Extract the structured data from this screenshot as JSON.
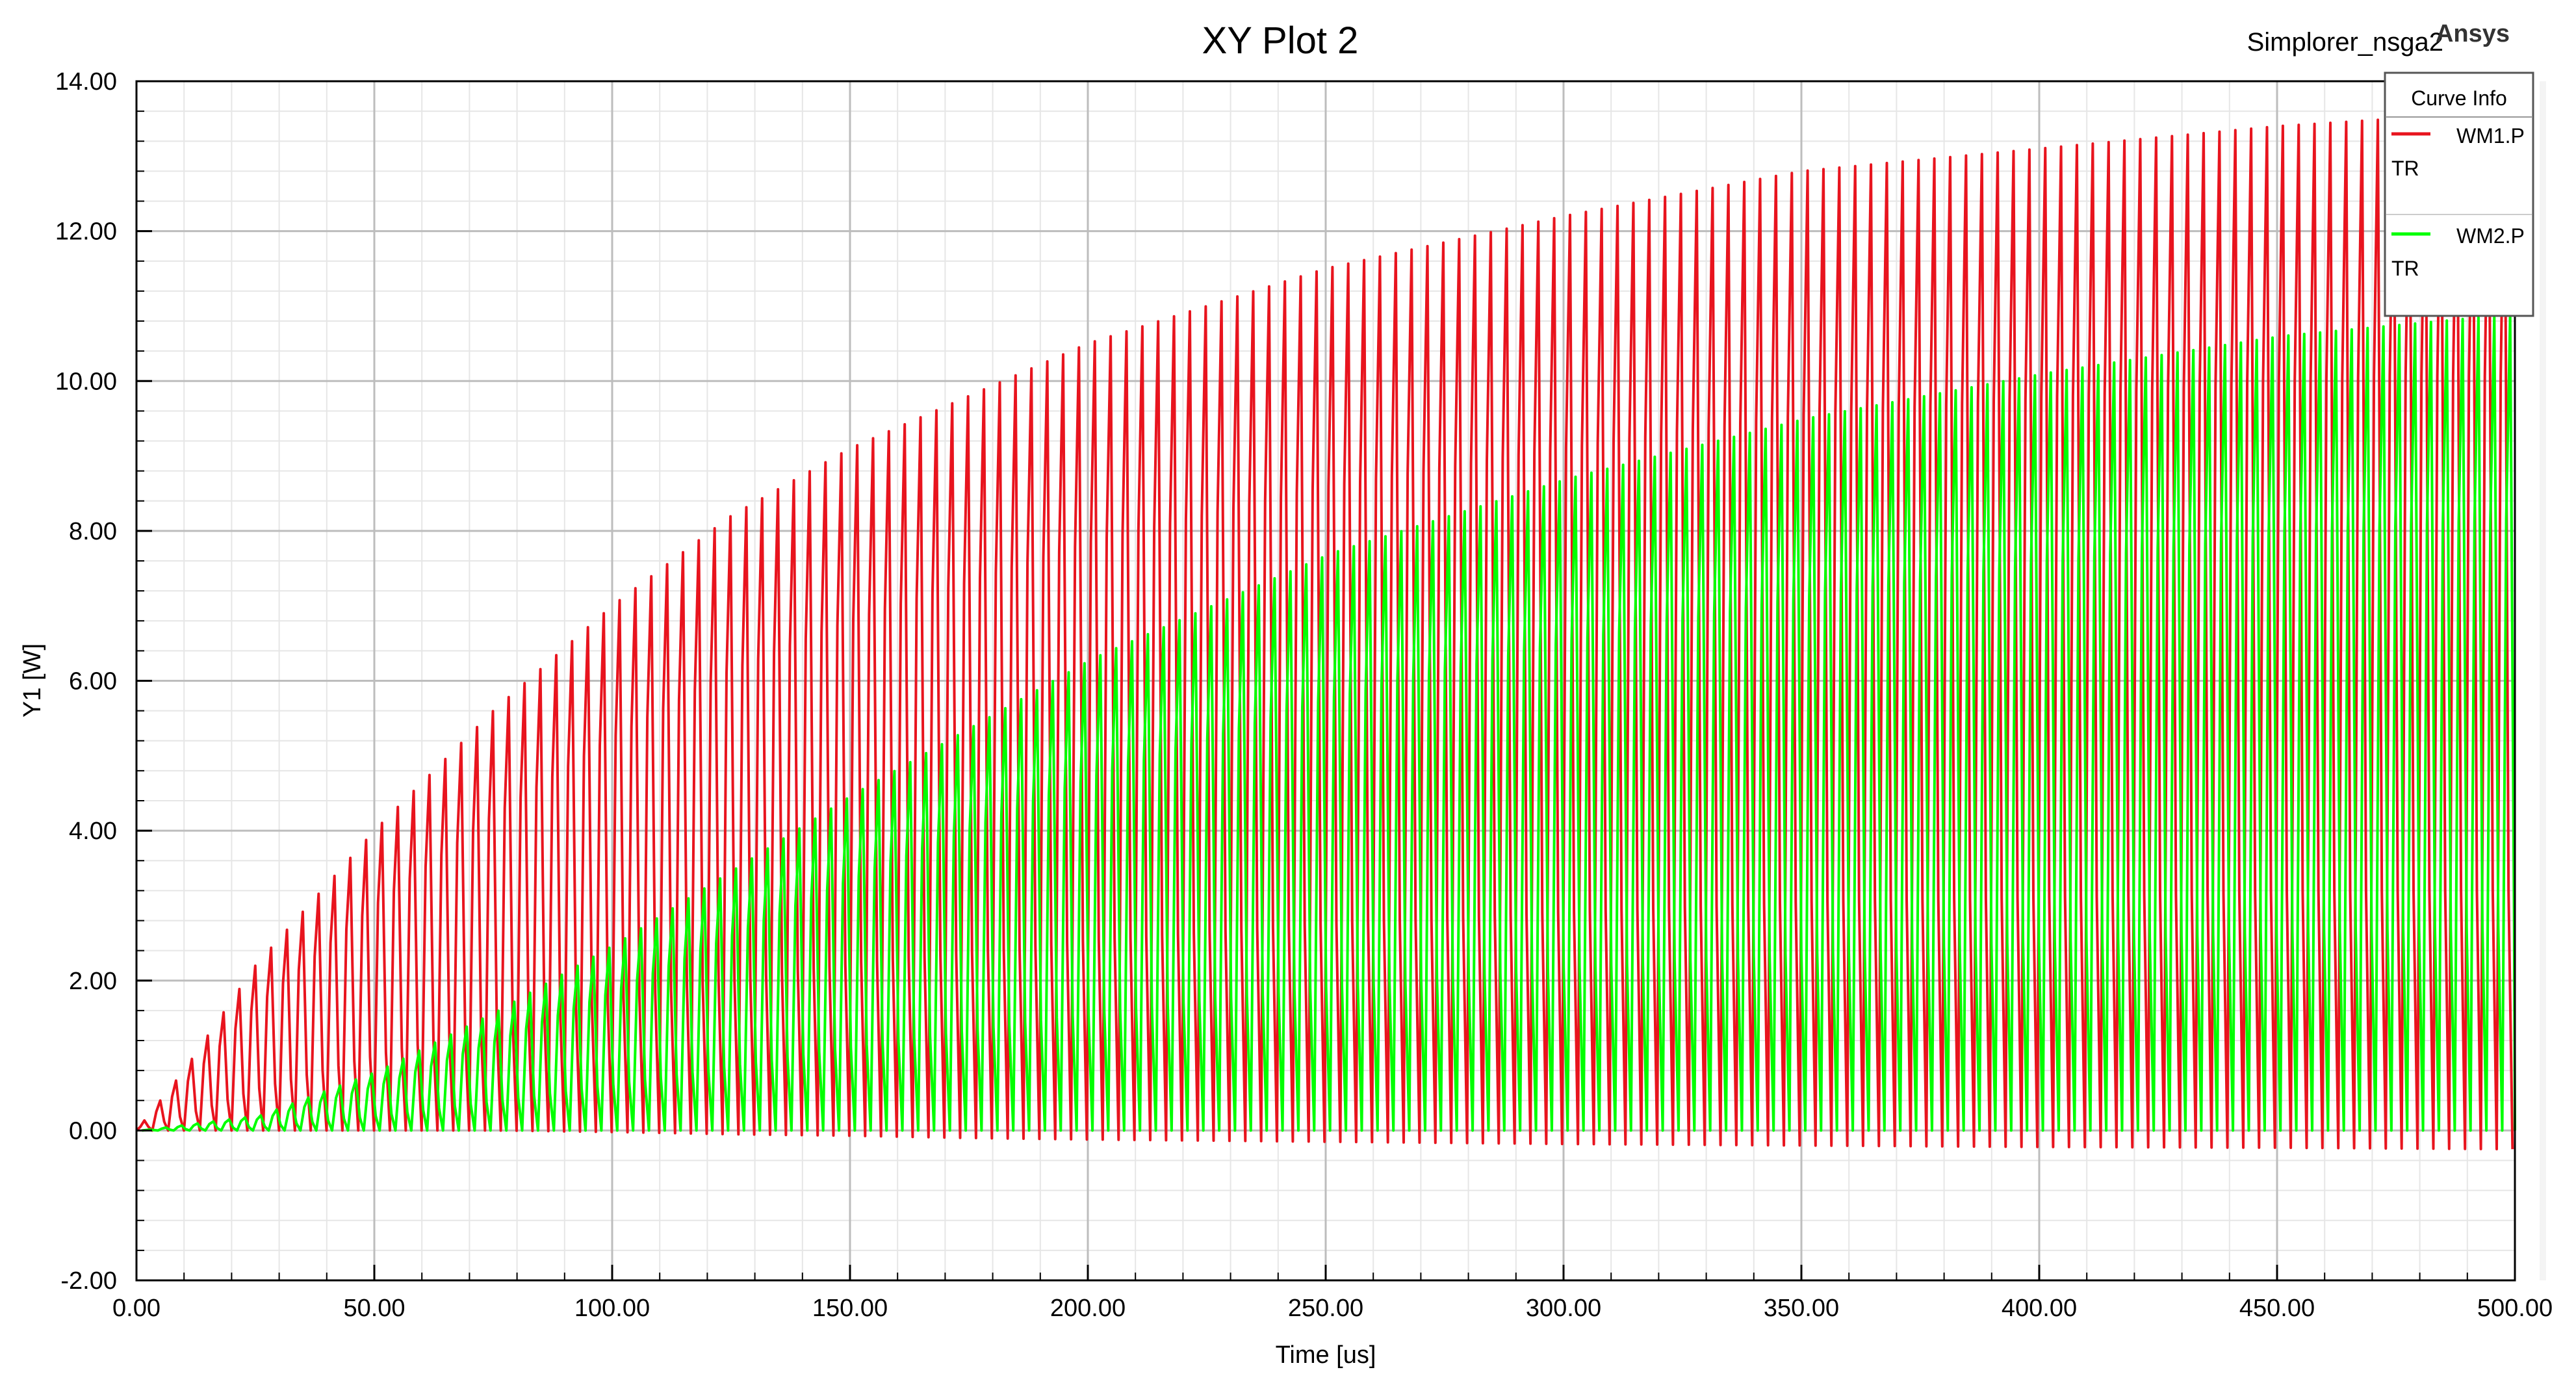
{
  "header": {
    "title": "XY Plot 2",
    "project": "Simplorer_nsga2",
    "brand": "Ansys"
  },
  "legend": {
    "title": "Curve Info",
    "placement": "top-right",
    "entries": [
      {
        "line1": "WM1.P",
        "line2": "TR",
        "color": "#e8141e"
      },
      {
        "line1": "WM2.P",
        "line2": "TR",
        "color": "#00ff00"
      }
    ]
  },
  "chart_data": {
    "type": "line",
    "title": "XY Plot 2",
    "xlabel": "Time [us]",
    "ylabel": "Y1 [W]",
    "xlim": [
      0,
      500
    ],
    "ylim": [
      -2,
      14
    ],
    "x_ticks": [
      "0.00",
      "50.00",
      "100.00",
      "150.00",
      "200.00",
      "250.00",
      "300.00",
      "350.00",
      "400.00",
      "450.00",
      "500.00"
    ],
    "y_ticks": [
      "-2.00",
      "0.00",
      "2.00",
      "4.00",
      "6.00",
      "8.00",
      "10.00",
      "12.00",
      "14.00"
    ],
    "grid": true,
    "series": [
      {
        "name": "WM1.P TR",
        "color": "#e8141e",
        "description_of_signal": "oscillating, envelope rising",
        "oscillation_period": 3.33,
        "envelope": {
          "x": [
            0,
            10,
            25,
            50,
            75,
            100,
            125,
            150,
            175,
            200,
            250,
            300,
            350,
            400,
            450,
            475,
            500
          ],
          "upper": [
            0.0,
            0.8,
            2.2,
            4.0,
            5.6,
            7.0,
            8.2,
            9.1,
            9.8,
            10.5,
            11.5,
            12.2,
            12.8,
            13.1,
            13.4,
            13.5,
            13.5
          ],
          "lower": [
            0.0,
            0.0,
            0.0,
            0.0,
            0.0,
            -0.02,
            -0.05,
            -0.07,
            -0.1,
            -0.12,
            -0.15,
            -0.18,
            -0.2,
            -0.22,
            -0.23,
            -0.24,
            -0.25
          ]
        }
      },
      {
        "name": "WM2.P TR",
        "color": "#00ff00",
        "description_of_signal": "oscillating, envelope rising",
        "oscillation_period": 3.33,
        "envelope": {
          "x": [
            0,
            25,
            50,
            75,
            100,
            125,
            150,
            175,
            200,
            250,
            300,
            350,
            400,
            450,
            500
          ],
          "upper": [
            0.0,
            0.2,
            0.8,
            1.6,
            2.5,
            3.5,
            4.5,
            5.4,
            6.3,
            7.7,
            8.7,
            9.5,
            10.1,
            10.6,
            10.9
          ],
          "lower": [
            0.0,
            0.0,
            0.0,
            0.0,
            0.0,
            0.0,
            0.0,
            0.0,
            0.0,
            0.0,
            0.0,
            0.0,
            0.0,
            0.0,
            0.0
          ]
        }
      }
    ]
  }
}
